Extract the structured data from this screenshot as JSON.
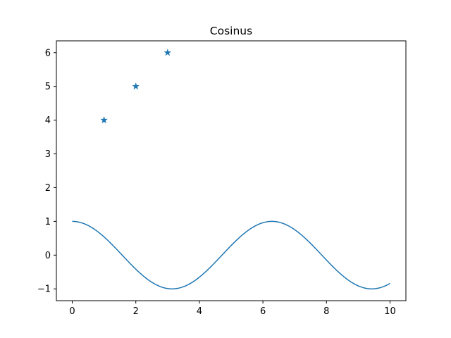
{
  "chart_data": {
    "type": "line",
    "title": "Cosinus",
    "xlabel": "",
    "ylabel": "",
    "xlim": [
      -0.5,
      10.5
    ],
    "ylim": [
      -1.35,
      6.35
    ],
    "grid": false,
    "colors": {
      "series": "#1f77b4",
      "axes": "#000000",
      "background": "#ffffff"
    },
    "x_ticks": [
      0,
      2,
      4,
      6,
      8,
      10
    ],
    "x_tick_labels": [
      "0",
      "2",
      "4",
      "6",
      "8",
      "10"
    ],
    "y_ticks": [
      -1,
      0,
      1,
      2,
      3,
      4,
      5,
      6
    ],
    "y_tick_labels": [
      "−1",
      "0",
      "1",
      "2",
      "3",
      "4",
      "5",
      "6"
    ],
    "series": [
      {
        "type": "line",
        "function": "cos(x)",
        "x": [
          0,
          0.5,
          1,
          1.5,
          2,
          2.5,
          3,
          3.5,
          4,
          4.5,
          5,
          5.5,
          6,
          6.5,
          7,
          7.5,
          8,
          8.5,
          9,
          9.5,
          10
        ],
        "values": [
          1,
          0.88,
          0.54,
          0.07,
          -0.42,
          -0.8,
          -0.99,
          -0.94,
          -0.65,
          -0.21,
          0.28,
          0.71,
          0.96,
          0.98,
          0.75,
          0.35,
          -0.15,
          -0.6,
          -0.91,
          -1.0,
          -0.84
        ],
        "x_range": [
          0,
          10
        ],
        "color": "#1f77b4"
      },
      {
        "type": "scatter",
        "marker": "star",
        "x": [
          1,
          2,
          3
        ],
        "values": [
          4,
          5,
          6
        ],
        "color": "#1f77b4"
      }
    ]
  }
}
